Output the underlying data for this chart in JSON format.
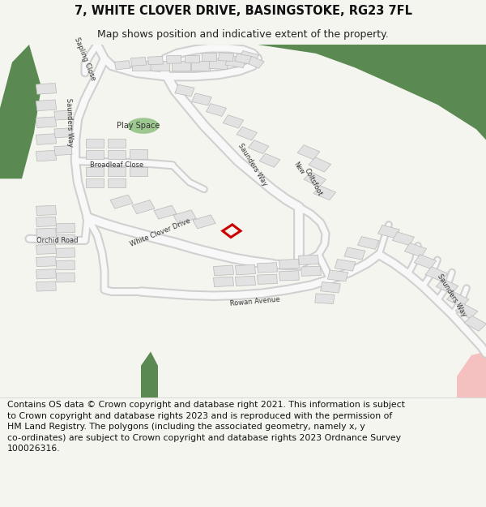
{
  "title": "7, WHITE CLOVER DRIVE, BASINGSTOKE, RG23 7FL",
  "subtitle": "Map shows position and indicative extent of the property.",
  "footer_line1": "Contains OS data © Crown copyright and database right 2021. This information is subject",
  "footer_line2": "to Crown copyright and database rights 2023 and is reproduced with the permission of",
  "footer_line3": "HM Land Registry. The polygons (including the associated geometry, namely x, y",
  "footer_line4": "co-ordinates) are subject to Crown copyright and database rights 2023 Ordnance Survey",
  "footer_line5": "100026316.",
  "bg_color": "#f5f5f0",
  "map_bg": "#ffffff",
  "green_dark": "#5a8a52",
  "green_play": "#9dc890",
  "building_color": "#e2e2e2",
  "building_outline": "#b8b8b8",
  "highlight_color": "#cc0000",
  "pink_color": "#f5c0c0",
  "title_fontsize": 10.5,
  "subtitle_fontsize": 9,
  "footer_fontsize": 7.8,
  "label_fontsize": 6.0
}
